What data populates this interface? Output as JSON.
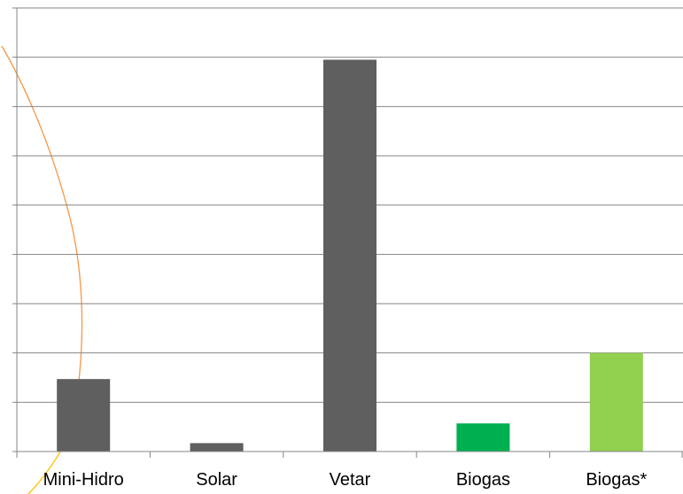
{
  "chart_data": {
    "type": "bar",
    "title": "",
    "xlabel": "",
    "ylabel": "",
    "ylim": [
      0,
      9
    ],
    "y_gridlines": 9,
    "y_tick_labels_shown": false,
    "grid": true,
    "legend": "none",
    "categories": [
      "Mini-Hidro",
      "Solar",
      "Vetar",
      "Biogas",
      "Biogas*"
    ],
    "values": [
      1.47,
      0.17,
      7.95,
      0.57,
      2.0
    ],
    "bar_colors": [
      "#5f5f5f",
      "#5f5f5f",
      "#5f5f5f",
      "#00b050",
      "#92d050"
    ],
    "gridline_color": "#868686",
    "axis_color": "#868686"
  },
  "decoration": {
    "curve_colors": [
      "#f79646",
      "#ffc000"
    ]
  }
}
